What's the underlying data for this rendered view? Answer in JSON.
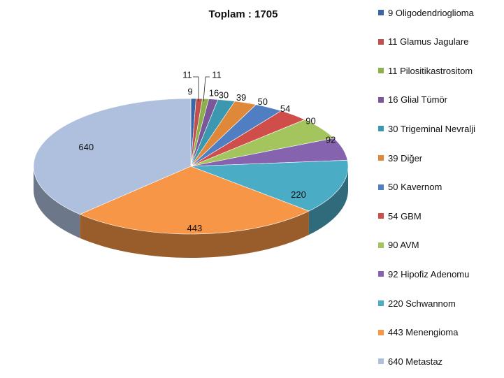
{
  "chart_data": {
    "type": "pie",
    "title": "Toplam : 1705",
    "slices": [
      {
        "label": "9 Oligodendrioglioma",
        "value": 9,
        "data_label": "9",
        "color": "#3A66A6"
      },
      {
        "label": "11 Glamus Jagulare",
        "value": 11,
        "data_label": "11",
        "color": "#C0504D"
      },
      {
        "label": "11 Pilositikastrositom",
        "value": 11,
        "data_label": "11",
        "color": "#8CB04A"
      },
      {
        "label": "16 Glial Tümör",
        "value": 16,
        "data_label": "16",
        "color": "#7A5799"
      },
      {
        "label": "30 Trigeminal Nevralji",
        "value": 30,
        "data_label": "30",
        "color": "#3B98AE"
      },
      {
        "label": "39 Diğer",
        "value": 39,
        "data_label": "39",
        "color": "#E0883A"
      },
      {
        "label": "50 Kavernom",
        "value": 50,
        "data_label": "50",
        "color": "#4F7FC2"
      },
      {
        "label": "54 GBM",
        "value": 54,
        "data_label": "54",
        "color": "#D04E4A"
      },
      {
        "label": "90 AVM",
        "value": 90,
        "data_label": "90",
        "color": "#A4C55E"
      },
      {
        "label": "92 Hipofiz Adenomu",
        "value": 92,
        "data_label": "92",
        "color": "#8563AE"
      },
      {
        "label": "220 Schwannom",
        "value": 220,
        "data_label": "220",
        "color": "#4BACC6"
      },
      {
        "label": "443 Menengioma",
        "value": 443,
        "data_label": "443",
        "color": "#F79646"
      },
      {
        "label": "640 Metastaz",
        "value": 640,
        "data_label": "640",
        "color": "#AFC0DE"
      }
    ],
    "legend_position": "right"
  }
}
